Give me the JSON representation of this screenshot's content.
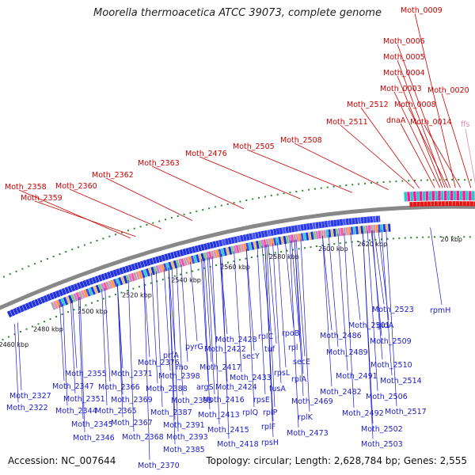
{
  "title": "Moorella thermoacetica ATCC 39073, complete genome",
  "footer": {
    "accession": "Accession: NC_007644",
    "topology": "Topology: circular; Length: 2,628,784 bp; Genes: 2,555"
  },
  "colors": {
    "forward_label": "#cc0000",
    "reverse_label": "#1a1acc",
    "rna_label": "#e38ab0",
    "backbone": "#888888",
    "tick": "#2a8a2a"
  },
  "scale_labels": [
    "20 kbp",
    "2460 kbp",
    "2480 kbp",
    "2500 kbp",
    "2520 kbp",
    "2540 kbp",
    "2560 kbp",
    "2580 kbp",
    "2600 kbp",
    "2620 kbp"
  ],
  "forward_labels": [
    "Moth_0009",
    "Moth_0006",
    "Moth_0005",
    "Moth_0004",
    "Moth_0003",
    "Moth_0008",
    "Moth_0020",
    "Moth_2512",
    "Moth_2511",
    "dnaA",
    "Moth_0014",
    "Moth_2508",
    "Moth_2505",
    "Moth_2476",
    "Moth_2363",
    "Moth_2362",
    "Moth_2360",
    "Moth_2358",
    "Moth_2359"
  ],
  "rna_labels": [
    "ffs"
  ],
  "reverse_labels": [
    "rpmH",
    "Moth_2523",
    "gidA",
    "Moth_2501",
    "Moth_2509",
    "Moth_2486",
    "Moth_2489",
    "Moth_2510",
    "Moth_2491",
    "Moth_2514",
    "Moth_2506",
    "Moth_2482",
    "Moth_2517",
    "Moth_2469",
    "Moth_2492",
    "Moth_2502",
    "Moth_2473",
    "Moth_2503",
    "rpoB",
    "rpl",
    "secE",
    "rplA",
    "rplK",
    "rplC",
    "tuf",
    "rpsL",
    "fusA",
    "secY",
    "rpsE",
    "rplP",
    "rplF",
    "rpsH",
    "rplQ",
    "Moth_2428",
    "Moth_2433",
    "Moth_2422",
    "Moth_2417",
    "Moth_2424",
    "Moth_2416",
    "Moth_2413",
    "Moth_2415",
    "Moth_2418",
    "pyrG",
    "argS",
    "Moth_2398",
    "Moth_2388",
    "Moth_2395",
    "Moth_2387",
    "Moth_2391",
    "Moth_2393",
    "Moth_2385",
    "Moth_2370",
    "prfA",
    "rho",
    "Moth_2376",
    "Moth_2371",
    "Moth_2366",
    "Moth_2369",
    "Moth_2365",
    "Moth_2367",
    "Moth_2368",
    "Moth_2355",
    "Moth_2347",
    "Moth_2351",
    "Moth_2344",
    "Moth_2345",
    "Moth_2346",
    "Moth_2327",
    "Moth_2322"
  ]
}
